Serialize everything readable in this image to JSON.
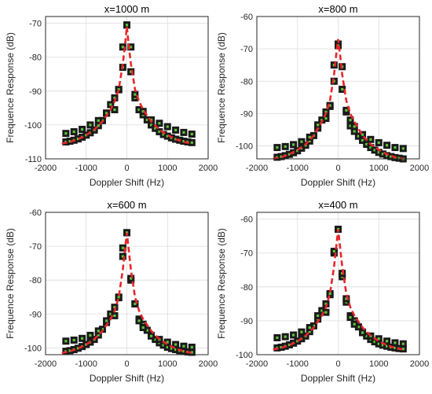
{
  "colors": {
    "curve": "#e8262a",
    "marker_fill": "#1a1a1a",
    "marker_dot": "#5cc43a"
  },
  "chart_data": [
    {
      "type": "scatter",
      "title": "x=1000 m",
      "xlabel": "Doppler Shift (Hz)",
      "ylabel": "Frequence Response (dB)",
      "xlim": [
        -2000,
        2000
      ],
      "ylim": [
        -110,
        -68
      ],
      "xticks": [
        -2000,
        -1000,
        0,
        1000,
        2000
      ],
      "yticks": [
        -110,
        -100,
        -90,
        -80,
        -70
      ],
      "xtick_labels": [
        "-2000",
        "-1000",
        "0",
        "1000",
        "2000"
      ],
      "ytick_labels": [
        "-110",
        "-100",
        "-90",
        "-80",
        "-70"
      ],
      "grid": true,
      "series": [
        {
          "kind": "markers",
          "x": [
            -1500,
            -1400,
            -1300,
            -1200,
            -1100,
            -1000,
            -900,
            -800,
            -700,
            -600,
            -500,
            -400,
            -300,
            -200,
            -100,
            0,
            100,
            200,
            300,
            400,
            500,
            600,
            700,
            800,
            900,
            1000,
            1100,
            1200,
            1300,
            1400,
            1500,
            1600
          ],
          "y": [
            -105,
            -104.8,
            -104.5,
            -104.1,
            -103.6,
            -103,
            -102.3,
            -101.5,
            -100.2,
            -98.7,
            -96.5,
            -94,
            -92,
            -89.6,
            -83,
            -70.5,
            -84.3,
            -92,
            -95.5,
            -97,
            -98.5,
            -100,
            -101,
            -102,
            -102.8,
            -103.3,
            -103.8,
            -104.2,
            -104.5,
            -104.8,
            -105,
            -105.2
          ]
        },
        {
          "kind": "markers",
          "x": [
            -1500,
            -1300,
            -1100,
            -900,
            -700,
            -500,
            -300,
            -200,
            -100,
            0,
            100,
            200,
            300,
            400,
            600,
            800,
            1000,
            1200,
            1400,
            1600
          ],
          "y": [
            -102.5,
            -102,
            -101.3,
            -100,
            -98.7,
            -96.5,
            -95.5,
            -89.5,
            -77,
            -70.5,
            -77,
            -91,
            -95.5,
            -96,
            -98.5,
            -99.5,
            -100.5,
            -101.5,
            -102.2,
            -102.7
          ]
        },
        {
          "kind": "curve",
          "x": [
            -1600,
            -1400,
            -1200,
            -1000,
            -800,
            -600,
            -400,
            -300,
            -200,
            -100,
            -50,
            0,
            50,
            100,
            200,
            300,
            400,
            600,
            800,
            1000,
            1200,
            1400,
            1600
          ],
          "y": [
            -105.5,
            -105,
            -104.2,
            -103,
            -101.4,
            -99,
            -95.5,
            -93,
            -89.5,
            -82,
            -77,
            -71,
            -77,
            -82,
            -89.5,
            -93,
            -95.5,
            -99,
            -101.4,
            -103,
            -104.2,
            -105,
            -105.5
          ]
        }
      ]
    },
    {
      "type": "scatter",
      "title": "x=800 m",
      "xlabel": "Doppler Shift (Hz)",
      "ylabel": "Frequence Response (dB)",
      "xlim": [
        -2000,
        2000
      ],
      "ylim": [
        -104,
        -60
      ],
      "xticks": [
        -2000,
        -1000,
        0,
        1000,
        2000
      ],
      "yticks": [
        -100,
        -90,
        -80,
        -70,
        -60
      ],
      "xtick_labels": [
        "-2000",
        "-1000",
        "0",
        "1000",
        "2000"
      ],
      "ytick_labels": [
        "-100",
        "-90",
        "-80",
        "-70",
        "-60"
      ],
      "grid": true,
      "series": [
        {
          "kind": "markers",
          "x": [
            -1500,
            -1400,
            -1300,
            -1200,
            -1100,
            -1000,
            -900,
            -800,
            -700,
            -600,
            -500,
            -400,
            -300,
            -200,
            -100,
            0,
            100,
            200,
            300,
            400,
            500,
            600,
            700,
            800,
            900,
            1000,
            1100,
            1200,
            1300,
            1400,
            1500,
            1600
          ],
          "y": [
            -103.5,
            -103.3,
            -103,
            -102.6,
            -102.1,
            -101.5,
            -100.7,
            -99.8,
            -98.5,
            -96.8,
            -94.5,
            -92,
            -89.5,
            -87.8,
            -80,
            -68.5,
            -82.5,
            -89.5,
            -93.8,
            -95.5,
            -97,
            -98.3,
            -99.5,
            -100.5,
            -101.3,
            -102,
            -102.5,
            -103,
            -103.3,
            -103.6,
            -103.8,
            -104
          ]
        },
        {
          "kind": "markers",
          "x": [
            -1500,
            -1300,
            -1100,
            -900,
            -700,
            -500,
            -300,
            -200,
            -100,
            0,
            100,
            200,
            300,
            400,
            600,
            800,
            1000,
            1200,
            1400,
            1600
          ],
          "y": [
            -100.5,
            -100.2,
            -99.6,
            -98.7,
            -97.3,
            -93.5,
            -91.5,
            -87.5,
            -75,
            -69,
            -75.5,
            -89,
            -92,
            -94,
            -96.5,
            -98,
            -99,
            -99.8,
            -100.5,
            -100.8
          ]
        },
        {
          "kind": "curve",
          "x": [
            -1600,
            -1400,
            -1200,
            -1000,
            -800,
            -600,
            -400,
            -300,
            -200,
            -100,
            -50,
            0,
            50,
            100,
            200,
            300,
            400,
            600,
            800,
            1000,
            1200,
            1400,
            1600
          ],
          "y": [
            -104,
            -103.5,
            -102.6,
            -101.2,
            -99.5,
            -96.8,
            -92.5,
            -90,
            -86,
            -78,
            -72,
            -67,
            -72,
            -78,
            -86,
            -90,
            -92.5,
            -96.8,
            -99.5,
            -101.2,
            -102.6,
            -103.5,
            -104
          ]
        }
      ]
    },
    {
      "type": "scatter",
      "title": "x=600 m",
      "xlabel": "Doppler Shift (Hz)",
      "ylabel": "Frequence Response (dB)",
      "xlim": [
        -2000,
        2000
      ],
      "ylim": [
        -102,
        -60
      ],
      "xticks": [
        -2000,
        -1000,
        0,
        1000,
        2000
      ],
      "yticks": [
        -100,
        -90,
        -80,
        -70,
        -60
      ],
      "xtick_labels": [
        "-2000",
        "-1000",
        "0",
        "1000",
        "2000"
      ],
      "ytick_labels": [
        "-100",
        "-90",
        "-80",
        "-70",
        "-60"
      ],
      "grid": true,
      "series": [
        {
          "kind": "markers",
          "x": [
            -1500,
            -1400,
            -1300,
            -1200,
            -1100,
            -1000,
            -900,
            -800,
            -700,
            -600,
            -500,
            -400,
            -300,
            -200,
            -100,
            0,
            100,
            200,
            300,
            400,
            500,
            600,
            700,
            800,
            900,
            1000,
            1100,
            1200,
            1300,
            1400,
            1500,
            1600
          ],
          "y": [
            -101,
            -100.8,
            -100.5,
            -100.1,
            -99.6,
            -99,
            -98.3,
            -97.5,
            -96.2,
            -94.5,
            -92.5,
            -90,
            -88,
            -85.2,
            -73,
            -66,
            -80,
            -87,
            -91.5,
            -93,
            -94.8,
            -96.3,
            -97.5,
            -98.5,
            -99.2,
            -99.8,
            -100.2,
            -100.5,
            -100.8,
            -101,
            -101.2,
            -101.3
          ]
        },
        {
          "kind": "markers",
          "x": [
            -1500,
            -1300,
            -1100,
            -900,
            -700,
            -500,
            -300,
            -200,
            -100,
            0,
            100,
            200,
            300,
            400,
            600,
            800,
            1000,
            1200,
            1400,
            1600
          ],
          "y": [
            -98,
            -97.7,
            -97.2,
            -96.3,
            -95,
            -92,
            -90.5,
            -85,
            -70.5,
            -66,
            -79.5,
            -87,
            -92,
            -94,
            -96.5,
            -97.5,
            -98.3,
            -99,
            -99.5,
            -99.8
          ]
        },
        {
          "kind": "curve",
          "x": [
            -1600,
            -1400,
            -1200,
            -1000,
            -800,
            -600,
            -400,
            -300,
            -200,
            -100,
            -50,
            0,
            50,
            100,
            200,
            300,
            400,
            600,
            800,
            1000,
            1200,
            1400,
            1600
          ],
          "y": [
            -101.5,
            -101,
            -100.2,
            -99,
            -97.4,
            -95,
            -91.5,
            -89,
            -85,
            -77,
            -71.5,
            -66,
            -71.5,
            -77,
            -85,
            -89,
            -91.5,
            -95,
            -97.4,
            -99,
            -100.2,
            -101,
            -101.5
          ]
        }
      ]
    },
    {
      "type": "scatter",
      "title": "x=400 m",
      "xlabel": "Doppler Shift (Hz)",
      "ylabel": "Frequence Response (dB)",
      "xlim": [
        -2000,
        2000
      ],
      "ylim": [
        -100,
        -58
      ],
      "xticks": [
        -2000,
        -1000,
        0,
        1000,
        2000
      ],
      "yticks": [
        -100,
        -90,
        -80,
        -70,
        -60
      ],
      "xtick_labels": [
        "-2000",
        "-1000",
        "0",
        "1000",
        "2000"
      ],
      "ytick_labels": [
        "-100",
        "-90",
        "-80",
        "-70",
        "-60"
      ],
      "grid": true,
      "series": [
        {
          "kind": "markers",
          "x": [
            -1500,
            -1400,
            -1300,
            -1200,
            -1100,
            -1000,
            -900,
            -800,
            -700,
            -600,
            -500,
            -400,
            -300,
            -200,
            -100,
            0,
            100,
            200,
            300,
            400,
            500,
            600,
            700,
            800,
            900,
            1000,
            1100,
            1200,
            1300,
            1400,
            1500,
            1600
          ],
          "y": [
            -98,
            -97.8,
            -97.5,
            -97.1,
            -96.6,
            -96,
            -95.3,
            -94.5,
            -93.2,
            -91.5,
            -89.5,
            -87,
            -85,
            -82.3,
            -70,
            -63,
            -77,
            -84.5,
            -88.5,
            -90,
            -91.8,
            -93.3,
            -94.5,
            -95.5,
            -96.2,
            -96.8,
            -97.2,
            -97.5,
            -97.8,
            -98,
            -98.2,
            -98.3
          ]
        },
        {
          "kind": "markers",
          "x": [
            -1500,
            -1300,
            -1100,
            -900,
            -700,
            -500,
            -300,
            -200,
            -100,
            0,
            100,
            200,
            300,
            400,
            600,
            800,
            1000,
            1200,
            1400,
            1600
          ],
          "y": [
            -95,
            -94.7,
            -94.2,
            -93.3,
            -92,
            -88.5,
            -87.5,
            -82,
            -69.5,
            -63,
            -76,
            -83.5,
            -89,
            -91,
            -93.5,
            -94.5,
            -95.3,
            -96,
            -96.5,
            -96.8
          ]
        },
        {
          "kind": "curve",
          "x": [
            -1600,
            -1400,
            -1200,
            -1000,
            -800,
            -600,
            -400,
            -300,
            -200,
            -100,
            -50,
            0,
            50,
            100,
            200,
            300,
            400,
            600,
            800,
            1000,
            1200,
            1400,
            1600
          ],
          "y": [
            -98.5,
            -98,
            -97.2,
            -96,
            -94.4,
            -92,
            -88.5,
            -86,
            -82,
            -74,
            -68.5,
            -63,
            -68.5,
            -74,
            -82,
            -86,
            -88.5,
            -92,
            -94.4,
            -96,
            -97.2,
            -98,
            -98.5
          ]
        }
      ]
    }
  ]
}
